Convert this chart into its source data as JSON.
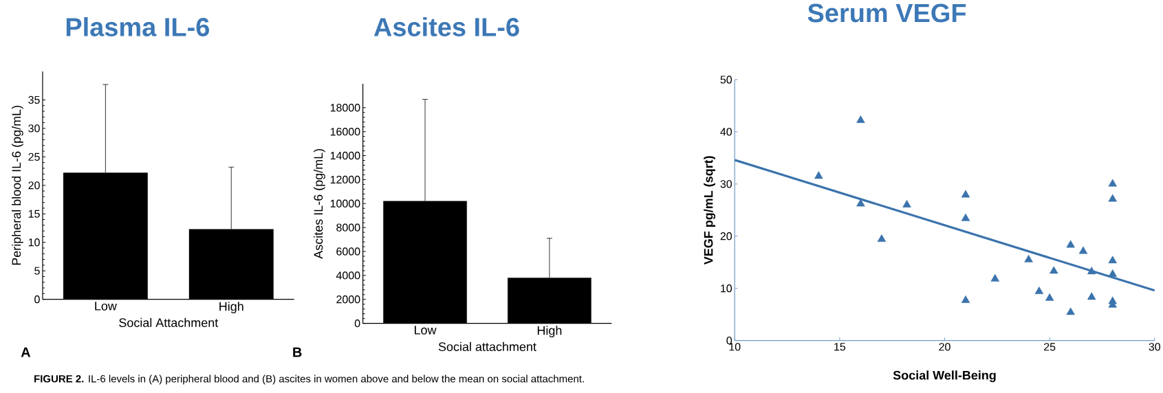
{
  "chart_data": [
    {
      "type": "bar",
      "title": "Plasma IL-6",
      "xlabel": "Social Attachment",
      "ylabel": "Peripheral blood IL-6 (pg/mL)",
      "categories": [
        "Low",
        "High"
      ],
      "values": [
        22.2,
        12.3
      ],
      "errors": [
        15.5,
        10.9
      ],
      "color": "#000000",
      "ylim": [
        0,
        40
      ],
      "yticks": [
        0,
        5,
        10,
        15,
        20,
        25,
        30,
        35
      ],
      "annotations": [
        "A",
        "**FIGURE 2.** IL-6 levels in (A) peripheral blood and (B) ascites in women above and below the mean on social attachment."
      ]
    },
    {
      "type": "bar",
      "title": "Ascites IL-6",
      "xlabel": "Social attachment",
      "ylabel": "Ascites IL-6 (pg/mL)",
      "categories": [
        "Low",
        "High"
      ],
      "values": [
        10200,
        3800
      ],
      "errors": [
        8500,
        3300
      ],
      "color": "#000000",
      "ylim": [
        0,
        20000
      ],
      "yticks": [
        0,
        2000,
        4000,
        6000,
        8000,
        10000,
        12000,
        14000,
        16000,
        18000
      ],
      "annotations": [
        "B"
      ]
    },
    {
      "type": "scatter",
      "title": "Serum VEGF",
      "xlabel": "Social Well-Being",
      "ylabel": "VEGF pg/mL (sqrt)",
      "xlim": [
        10,
        30
      ],
      "ylim": [
        0,
        50
      ],
      "xticks": [
        10,
        15,
        20,
        25,
        30
      ],
      "yticks": [
        0,
        10,
        20,
        30,
        40,
        50
      ],
      "series": [
        {
          "type": "scatter",
          "marker": "triangle",
          "color": "#3b73ad",
          "x": [
            14,
            16,
            16,
            17,
            18.2,
            21,
            21,
            21,
            22.4,
            24,
            24.5,
            25,
            25.2,
            26,
            26,
            26.6,
            27,
            27,
            28,
            28,
            28,
            28,
            28,
            28
          ],
          "values": [
            31.5,
            42.2,
            26.2,
            19.4,
            26.0,
            27.9,
            23.4,
            7.7,
            11.8,
            15.5,
            9.4,
            8.1,
            13.3,
            18.3,
            5.4,
            17.1,
            13.2,
            8.3,
            30.0,
            27.1,
            15.3,
            12.7,
            7.5,
            6.8
          ]
        },
        {
          "type": "line",
          "color": "#3b73ad",
          "x": [
            10,
            30
          ],
          "values": [
            34.6,
            9.6
          ]
        }
      ]
    }
  ]
}
